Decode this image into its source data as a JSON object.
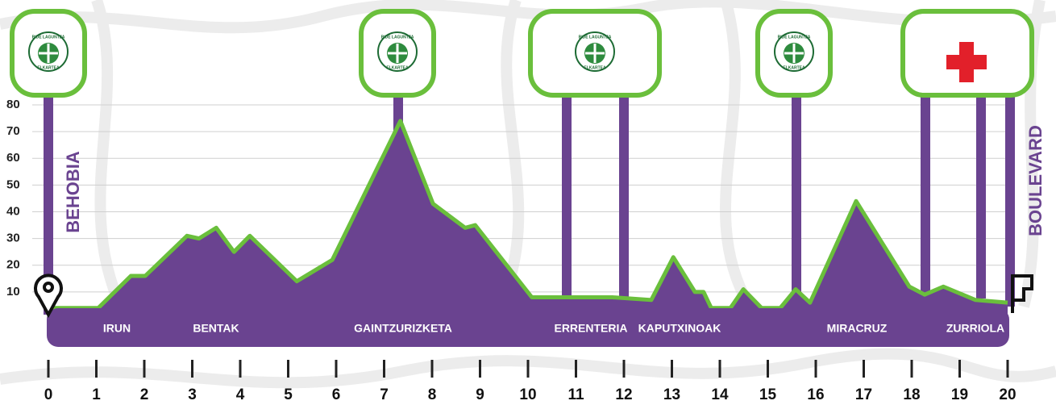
{
  "chart_data": {
    "type": "area",
    "x": [
      0,
      1.04,
      1.72,
      2.02,
      2.89,
      3.14,
      3.5,
      3.87,
      4.2,
      5.18,
      5.92,
      7.34,
      8.02,
      8.69,
      8.9,
      10.08,
      11.76,
      12.57,
      13.03,
      13.48,
      13.66,
      13.82,
      14.22,
      14.49,
      14.87,
      15.26,
      15.58,
      15.88,
      16.84,
      17.95,
      18.27,
      18.66,
      19.33,
      20
    ],
    "values": [
      4,
      4,
      16,
      16,
      31,
      30,
      34,
      25,
      31,
      14,
      22,
      74,
      43,
      34,
      35,
      8,
      8,
      7,
      23,
      10,
      10,
      4,
      4,
      11,
      4,
      4,
      11,
      6,
      44,
      12,
      9,
      12,
      7,
      6
    ],
    "color": "#6a4390",
    "line_color": "#6abf3c",
    "xlim": [
      0,
      20
    ],
    "xticks": [
      0,
      1,
      2,
      3,
      4,
      5,
      6,
      7,
      8,
      9,
      10,
      11,
      12,
      13,
      14,
      15,
      16,
      17,
      18,
      19,
      20
    ],
    "ylim": [
      0,
      80
    ],
    "yticks": [
      10,
      20,
      30,
      40,
      50,
      60,
      70,
      80
    ],
    "grid": true,
    "start": "BEHOBIA",
    "finish": "BOULEVARD",
    "places": [
      "IRUN",
      "BENTAK",
      "GAINTZURIZKETA",
      "ERRENTERIA",
      "KAPUTXINOAK",
      "MIRACRUZ",
      "ZURRIOLA"
    ],
    "logo": [
      "BIDE LAGUNTZA",
      "ELKARTEA"
    ]
  }
}
